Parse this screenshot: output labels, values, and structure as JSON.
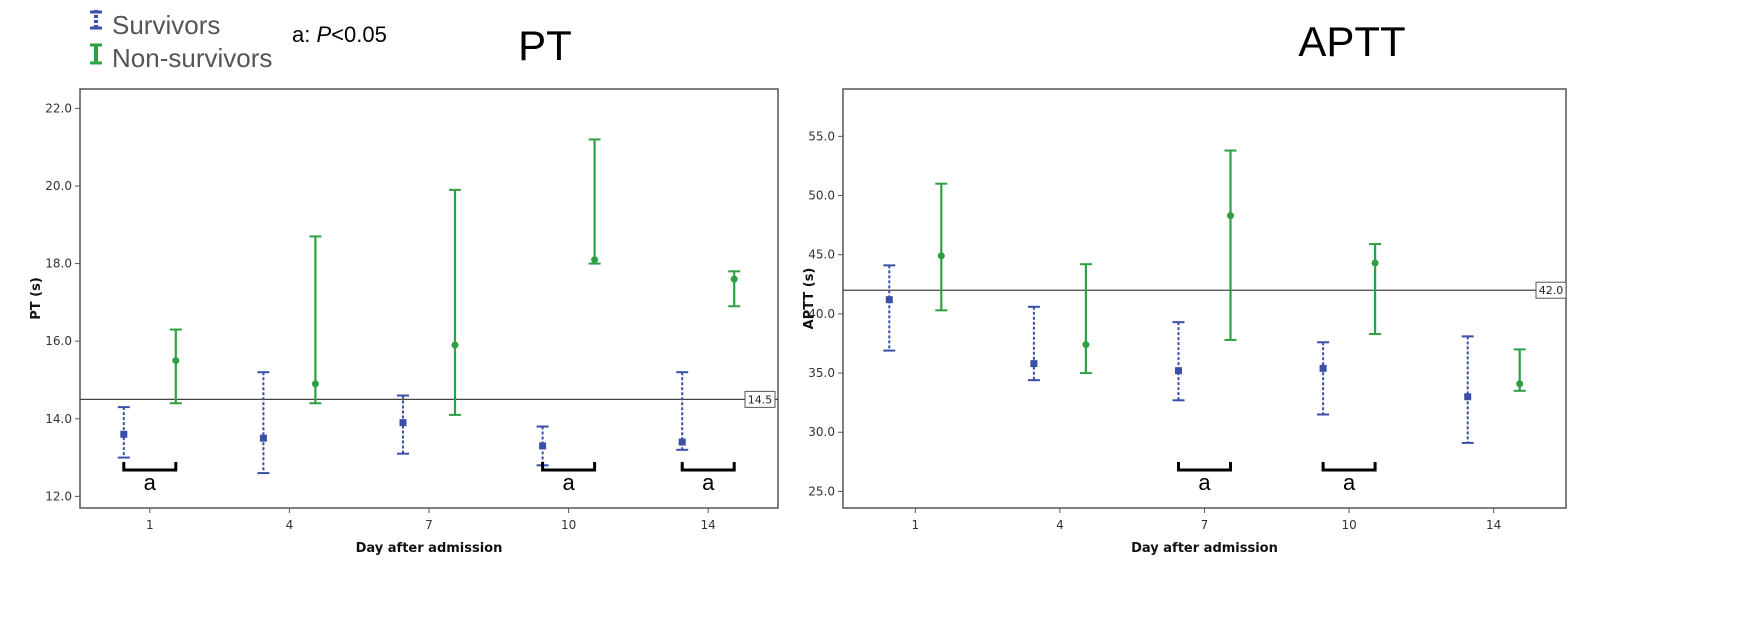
{
  "legend": {
    "entries": [
      {
        "name": "Survivors",
        "color": "#3a4fa8",
        "style": "dotted"
      },
      {
        "name": "Non-survivors",
        "color": "#2ea043",
        "style": "solid"
      }
    ],
    "significance_prefix": "a: ",
    "significance_p": "P",
    "significance_suffix": "<0.05"
  },
  "chart_data": [
    {
      "type": "errorbar",
      "title": "PT",
      "xlabel": "Day after admission",
      "ylabel": "PT (s)",
      "categories": [
        "1",
        "4",
        "7",
        "10",
        "14"
      ],
      "ylim": [
        11.7,
        22.5
      ],
      "yticks": [
        12.0,
        14.0,
        16.0,
        18.0,
        20.0,
        22.0
      ],
      "ytick_labels": [
        "12.0",
        "14.0",
        "16.0",
        "18.0",
        "20.0",
        "22.0"
      ],
      "reference_line": {
        "value": 14.5,
        "label": "14.5"
      },
      "series": [
        {
          "name": "Survivors",
          "mean": [
            13.6,
            13.5,
            13.9,
            13.3,
            13.4
          ],
          "lower": [
            13.0,
            12.6,
            13.1,
            12.8,
            13.2
          ],
          "upper": [
            14.3,
            15.2,
            14.6,
            13.8,
            15.2
          ]
        },
        {
          "name": "Non-survivors",
          "mean": [
            15.5,
            14.9,
            15.9,
            18.1,
            17.6
          ],
          "lower": [
            14.4,
            14.4,
            14.1,
            18.0,
            16.9
          ],
          "upper": [
            16.3,
            18.7,
            19.9,
            21.2,
            17.8
          ]
        }
      ],
      "significance_marks": [
        {
          "category": "1",
          "label": "a"
        },
        {
          "category": "10",
          "label": "a"
        },
        {
          "category": "14",
          "label": "a"
        }
      ]
    },
    {
      "type": "errorbar",
      "title": "APTT",
      "xlabel": "Day after admission",
      "ylabel": "APTT (s)",
      "categories": [
        "1",
        "4",
        "7",
        "10",
        "14"
      ],
      "ylim": [
        23.6,
        59.0
      ],
      "yticks": [
        25.0,
        30.0,
        35.0,
        40.0,
        45.0,
        50.0,
        55.0
      ],
      "ytick_labels": [
        "25.0",
        "30.0",
        "35.0",
        "40.0",
        "45.0",
        "50.0",
        "55.0"
      ],
      "reference_line": {
        "value": 42.0,
        "label": "42.0"
      },
      "series": [
        {
          "name": "Survivors",
          "mean": [
            41.2,
            35.8,
            35.2,
            35.4,
            33.0
          ],
          "lower": [
            36.9,
            34.4,
            32.7,
            31.5,
            29.1
          ],
          "upper": [
            44.1,
            40.6,
            39.3,
            37.6,
            38.1
          ]
        },
        {
          "name": "Non-survivors",
          "mean": [
            44.9,
            37.4,
            48.3,
            44.3,
            34.1
          ],
          "lower": [
            40.3,
            35.0,
            37.8,
            38.3,
            33.5
          ],
          "upper": [
            51.0,
            44.2,
            53.8,
            45.9,
            37.0
          ]
        }
      ],
      "significance_marks": [
        {
          "category": "7",
          "label": "a"
        },
        {
          "category": "10",
          "label": "a"
        }
      ]
    }
  ]
}
